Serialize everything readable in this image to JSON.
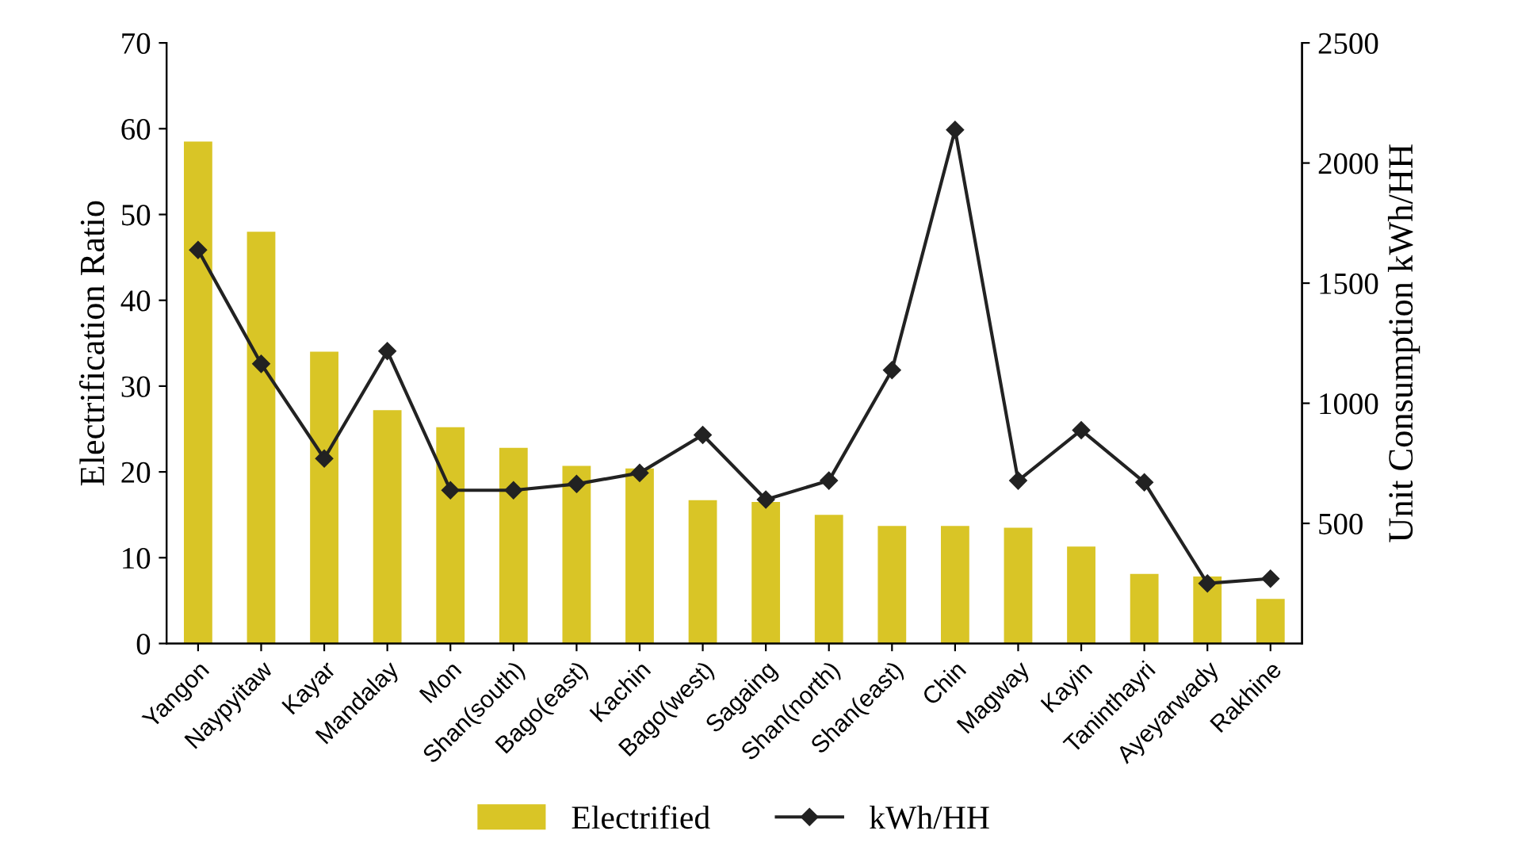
{
  "chart_data": {
    "type": "bar",
    "ylabel": "Electrification Ratio",
    "y2label": "Unit Consumption kWh/HH",
    "categories": [
      "Yangon",
      "Naypyitaw",
      "Kayar",
      "Mandalay",
      "Mon",
      "Shan(south)",
      "Bago(east)",
      "Kachin",
      "Bago(west)",
      "Sagaing",
      "Shan(north)",
      "Shan(east)",
      "Chin",
      "Magway",
      "Kayin",
      "Taninthayri",
      "Ayeyarwady",
      "Rakhine"
    ],
    "series": [
      {
        "name": "Electrified",
        "color": "#d9c526",
        "values": [
          58.5,
          48,
          34,
          27.2,
          25.2,
          22.8,
          20.7,
          20.4,
          16.7,
          16.5,
          15,
          13.7,
          13.7,
          13.5,
          11.3,
          8.1,
          7.8,
          5.2
        ]
      },
      {
        "name": "kWh/HH",
        "type": "line",
        "axis": "y2",
        "color": "#222222",
        "marker": "diamond",
        "values": [
          1638,
          1164,
          770,
          1217,
          638,
          638,
          664,
          710,
          868,
          599,
          678,
          1138,
          2138,
          678,
          888,
          671,
          250,
          270
        ]
      }
    ],
    "ylim": [
      0,
      70
    ],
    "yticks": [
      0,
      10,
      20,
      30,
      40,
      50,
      60,
      70
    ],
    "y2lim": [
      0,
      2500
    ],
    "y2ticks": [
      500,
      1000,
      1500,
      2000,
      2500
    ],
    "legend": "bottom",
    "grid": false
  }
}
